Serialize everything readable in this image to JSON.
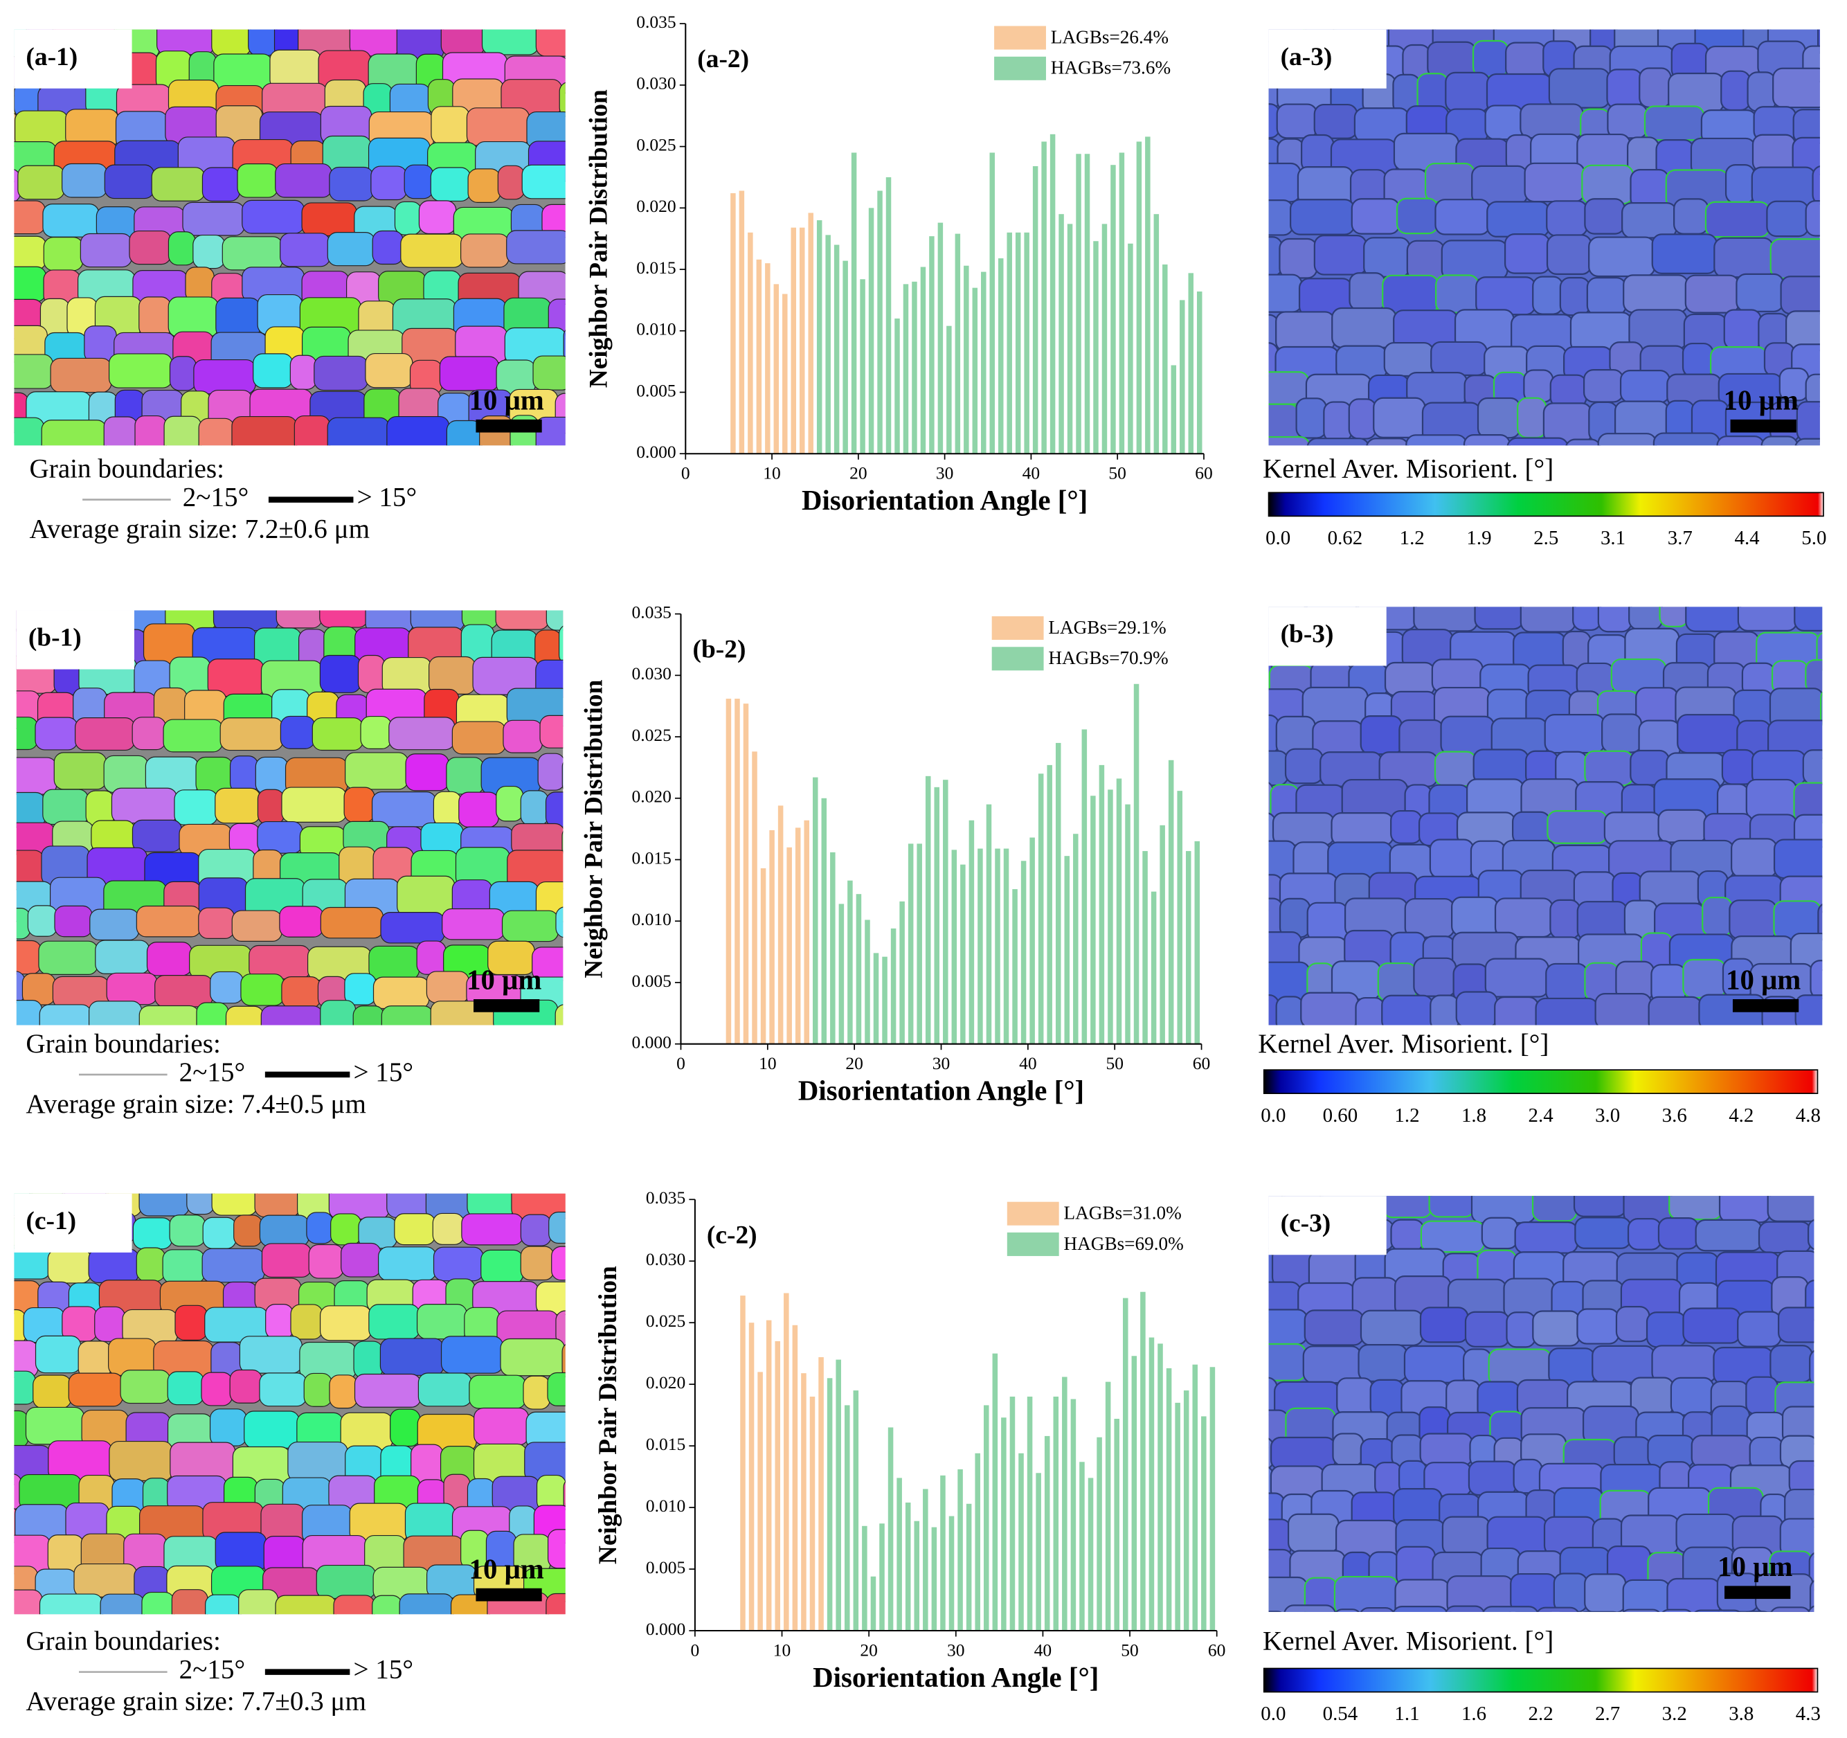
{
  "chart_data": [
    {
      "type": "bar",
      "label": "(a-2)",
      "y_label": "Neighbor Pair Distribution",
      "x_label": "Disorientation Angle [°]",
      "xlim": [
        0,
        60
      ],
      "xticks": [
        0,
        10,
        20,
        30,
        40,
        50,
        60
      ],
      "ylim": [
        0,
        0.035
      ],
      "yticks": [
        {
          "value": 0,
          "label": "0.000"
        },
        0.005,
        {
          "value": 0.01,
          "label": "0.010"
        },
        0.015,
        {
          "value": 0.02,
          "label": "0.020"
        },
        0.025,
        {
          "value": 0.03,
          "label": "0.030"
        },
        0.035
      ],
      "series": [
        {
          "name": "LAGBs=26.4%",
          "color": "#f9c99c",
          "bins": [
            5,
            6,
            7,
            8,
            9,
            10,
            11,
            12,
            13,
            14,
            15
          ],
          "values": [
            0.0212,
            0.0214,
            0.018,
            0.0158,
            0.0155,
            0.0138,
            0.013,
            0.0184,
            0.0184,
            0.0196
          ]
        },
        {
          "name": "HAGBs=73.6%",
          "color": "#8fd4a8",
          "bins": [
            15,
            16,
            17,
            18,
            19,
            20,
            21,
            22,
            23,
            24,
            25,
            26,
            27,
            28,
            29,
            30,
            31,
            32,
            33,
            34,
            35,
            36,
            37,
            38,
            39,
            40,
            41,
            42,
            43,
            44,
            45,
            46,
            47,
            48,
            49,
            50,
            51,
            52,
            53,
            54,
            55,
            56,
            57,
            58,
            59,
            60
          ],
          "values": [
            0.019,
            0.0178,
            0.017,
            0.0157,
            0.0245,
            0.0142,
            0.02,
            0.0214,
            0.0225,
            0.011,
            0.0138,
            0.014,
            0.0152,
            0.0177,
            0.0188,
            0.0104,
            0.0179,
            0.0153,
            0.0135,
            0.0148,
            0.0245,
            0.0159,
            0.018,
            0.018,
            0.018,
            0.0234,
            0.0254,
            0.026,
            0.0195,
            0.0187,
            0.0244,
            0.0244,
            0.0173,
            0.0187,
            0.0235,
            0.0245,
            0.0171,
            0.0254,
            0.0258,
            0.0195,
            0.0154,
            0.0072,
            0.0125,
            0.0147,
            0.0132
          ]
        }
      ]
    },
    {
      "type": "bar",
      "label": "(b-2)",
      "y_label": "Neighbor Pair Distribution",
      "x_label": "Disorientation Angle [°]",
      "xlim": [
        0,
        60
      ],
      "xticks": [
        0,
        10,
        20,
        30,
        40,
        50,
        60
      ],
      "ylim": [
        0,
        0.035
      ],
      "yticks": [
        {
          "value": 0,
          "label": "0.000"
        },
        0.005,
        {
          "value": 0.01,
          "label": "0.010"
        },
        0.015,
        {
          "value": 0.02,
          "label": "0.020"
        },
        0.025,
        {
          "value": 0.03,
          "label": "0.030"
        },
        0.035
      ],
      "series": [
        {
          "name": "LAGBs=29.1%",
          "color": "#f9c99c",
          "bins": [
            5,
            6,
            7,
            8,
            9,
            10,
            11,
            12,
            13,
            14,
            15
          ],
          "values": [
            0.0281,
            0.0281,
            0.0277,
            0.0238,
            0.0143,
            0.0174,
            0.0194,
            0.016,
            0.0176,
            0.0182
          ]
        },
        {
          "name": "HAGBs=70.9%",
          "color": "#8fd4a8",
          "bins": [
            15,
            16,
            17,
            18,
            19,
            20,
            21,
            22,
            23,
            24,
            25,
            26,
            27,
            28,
            29,
            30,
            31,
            32,
            33,
            34,
            35,
            36,
            37,
            38,
            39,
            40,
            41,
            42,
            43,
            44,
            45,
            46,
            47,
            48,
            49,
            50,
            51,
            52,
            53,
            54,
            55,
            56,
            57,
            58,
            59,
            60
          ],
          "values": [
            0.0217,
            0.02,
            0.0156,
            0.0114,
            0.0133,
            0.0122,
            0.0101,
            0.0074,
            0.0071,
            0.0094,
            0.0116,
            0.0163,
            0.0163,
            0.0218,
            0.0209,
            0.0215,
            0.0158,
            0.0146,
            0.0182,
            0.0159,
            0.0195,
            0.0159,
            0.0159,
            0.0126,
            0.0149,
            0.0168,
            0.022,
            0.0227,
            0.0245,
            0.0153,
            0.0171,
            0.0256,
            0.0202,
            0.0227,
            0.0207,
            0.0216,
            0.0195,
            0.0293,
            0.0157,
            0.0124,
            0.0178,
            0.0231,
            0.0206,
            0.0157,
            0.0165
          ]
        }
      ]
    },
    {
      "type": "bar",
      "label": "(c-2)",
      "y_label": "Neighbor Pair Distribution",
      "x_label": "Disorientation Angle [°]",
      "xlim": [
        0,
        60
      ],
      "xticks": [
        0,
        10,
        20,
        30,
        40,
        50,
        60
      ],
      "ylim": [
        0,
        0.035
      ],
      "yticks": [
        {
          "value": 0,
          "label": "0.000"
        },
        0.005,
        {
          "value": 0.01,
          "label": "0.010"
        },
        0.015,
        {
          "value": 0.02,
          "label": "0.020"
        },
        0.025,
        {
          "value": 0.03,
          "label": "0.030"
        },
        0.035
      ],
      "series": [
        {
          "name": "LAGBs=31.0%",
          "color": "#f9c99c",
          "bins": [
            5,
            6,
            7,
            8,
            9,
            10,
            11,
            12,
            13,
            14,
            15
          ],
          "values": [
            0.0272,
            0.025,
            0.021,
            0.0252,
            0.0235,
            0.0274,
            0.0248,
            0.0209,
            0.019,
            0.0222
          ]
        },
        {
          "name": "HAGBs=69.0%",
          "color": "#8fd4a8",
          "bins": [
            15,
            16,
            17,
            18,
            19,
            20,
            21,
            22,
            23,
            24,
            25,
            26,
            27,
            28,
            29,
            30,
            31,
            32,
            33,
            34,
            35,
            36,
            37,
            38,
            39,
            40,
            41,
            42,
            43,
            44,
            45,
            46,
            47,
            48,
            49,
            50,
            51,
            52,
            53,
            54,
            55,
            56,
            57,
            58,
            59,
            60
          ],
          "values": [
            0.0205,
            0.022,
            0.0183,
            0.0195,
            0.0085,
            0.0044,
            0.0087,
            0.0165,
            0.0124,
            0.0104,
            0.0089,
            0.0115,
            0.0084,
            0.0126,
            0.0093,
            0.0131,
            0.0103,
            0.0144,
            0.0183,
            0.0225,
            0.0173,
            0.019,
            0.0144,
            0.019,
            0.0128,
            0.0158,
            0.019,
            0.0206,
            0.0188,
            0.0137,
            0.0124,
            0.0157,
            0.0202,
            0.0172,
            0.027,
            0.0223,
            0.0275,
            0.0238,
            0.0233,
            0.0213,
            0.0185,
            0.0195,
            0.0216,
            0.0174,
            0.0214
          ]
        }
      ]
    }
  ],
  "panels": [
    {
      "map_label": "(a-1)",
      "scale_bar": "10 μm",
      "boundaries_title": "Grain boundaries:",
      "low_angle": "2~15°",
      "high_angle": "> 15°",
      "grain_size": "Average grain size: 7.2±0.6 μm",
      "kam_label": "(a-3)",
      "kam_scale_bar": "10 μm",
      "kam_title": "Kernel Aver. Misorient. [°]",
      "colorbar_ticks": [
        "0.0",
        "0.62",
        "1.2",
        "1.9",
        "2.5",
        "3.1",
        "3.7",
        "4.4",
        "5.0"
      ]
    },
    {
      "map_label": "(b-1)",
      "scale_bar": "10 μm",
      "boundaries_title": "Grain boundaries:",
      "low_angle": "2~15°",
      "high_angle": "> 15°",
      "grain_size": "Average grain size: 7.4±0.5 μm",
      "kam_label": "(b-3)",
      "kam_scale_bar": "10 μm",
      "kam_title": "Kernel Aver. Misorient. [°]",
      "colorbar_ticks": [
        "0.0",
        "0.60",
        "1.2",
        "1.8",
        "2.4",
        "3.0",
        "3.6",
        "4.2",
        "4.8"
      ]
    },
    {
      "map_label": "(c-1)",
      "scale_bar": "10 μm",
      "boundaries_title": "Grain boundaries:",
      "low_angle": "2~15°",
      "high_angle": "> 15°",
      "grain_size": "Average grain size: 7.7±0.3 μm",
      "kam_label": "(c-3)",
      "kam_scale_bar": "10 μm",
      "kam_title": "Kernel Aver. Misorient. [°]",
      "colorbar_ticks": [
        "0.0",
        "0.54",
        "1.1",
        "1.6",
        "2.2",
        "2.7",
        "3.2",
        "3.8",
        "4.3"
      ]
    }
  ]
}
